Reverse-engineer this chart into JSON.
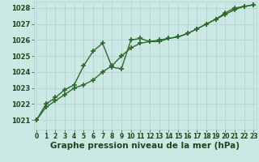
{
  "title": "Graphe pression niveau de la mer (hPa)",
  "hours": [
    0,
    1,
    2,
    3,
    4,
    5,
    6,
    7,
    8,
    9,
    10,
    11,
    12,
    13,
    14,
    15,
    16,
    17,
    18,
    19,
    20,
    21,
    22,
    23
  ],
  "line1_smooth": [
    1021.0,
    1021.8,
    1022.2,
    1022.6,
    1023.0,
    1023.2,
    1023.5,
    1024.0,
    1024.4,
    1025.0,
    1025.5,
    1025.8,
    1025.9,
    1026.0,
    1026.1,
    1026.2,
    1026.4,
    1026.7,
    1027.0,
    1027.3,
    1027.6,
    1027.9,
    1028.1,
    1028.2
  ],
  "line2_bulge": [
    1021.0,
    1022.0,
    1022.4,
    1022.9,
    1023.2,
    1024.4,
    1025.3,
    1025.8,
    1024.3,
    1024.2,
    1026.0,
    1026.1,
    1025.9,
    1025.9,
    1026.1,
    1026.2,
    1026.4,
    1026.7,
    1027.0,
    1027.3,
    1027.7,
    1028.0,
    1028.1,
    1028.2
  ],
  "line_color": "#2d6a2d",
  "bg_color": "#cce8e4",
  "grid_color": "#b0d0cc",
  "ylim_bottom": 1020.4,
  "ylim_top": 1028.4,
  "yticks": [
    1021,
    1022,
    1023,
    1024,
    1025,
    1026,
    1027,
    1028
  ],
  "xlim_left": -0.3,
  "xlim_right": 23.3,
  "xticks": [
    0,
    1,
    2,
    3,
    4,
    5,
    6,
    7,
    8,
    9,
    10,
    11,
    12,
    13,
    14,
    15,
    16,
    17,
    18,
    19,
    20,
    21,
    22,
    23
  ],
  "marker": "+",
  "marker_size": 4,
  "line_width": 1.0,
  "title_fontsize": 7.5,
  "tick_fontsize": 5.5,
  "title_color": "#1a4a1a",
  "tick_color": "#1a4a1a"
}
